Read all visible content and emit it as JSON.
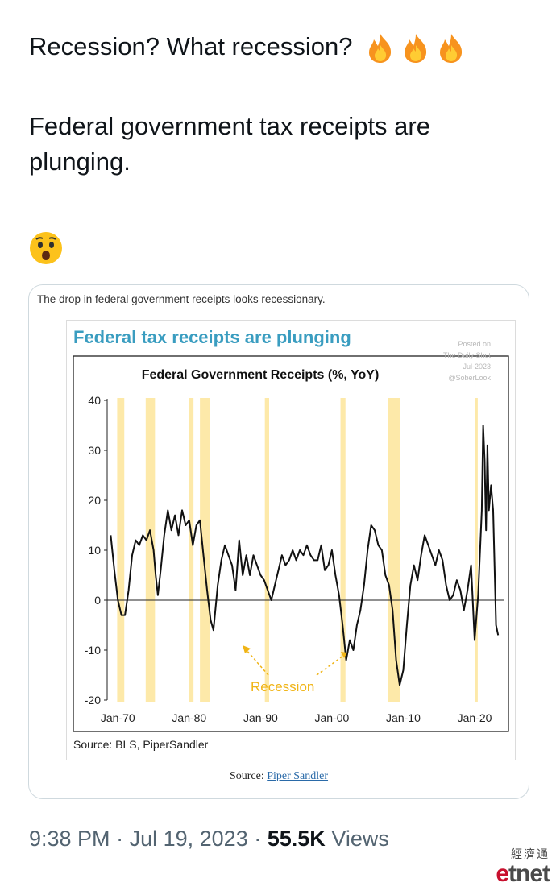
{
  "tweet": {
    "line1": "Recession? What recession?",
    "line2": "Federal government tax receipts are plunging.",
    "emojis": [
      "fire-icon",
      "fire-icon",
      "fire-icon",
      "astonished-face-icon"
    ]
  },
  "card": {
    "caption": "The drop in federal government receipts looks recessionary.",
    "headline": "Federal tax receipts are plunging",
    "watermark": [
      "Posted on",
      "The Daily Shot",
      "Jul-2023",
      "@SoberLook"
    ],
    "chart_source": "Source: BLS, PiperSandler",
    "source_prefix": "Source: ",
    "source_link": "Piper Sandler"
  },
  "chart_data": {
    "type": "line",
    "title": "Federal Government Receipts (%, YoY)",
    "xlabel": "",
    "ylabel": "",
    "ylim": [
      -20,
      40
    ],
    "y_ticks": [
      "40",
      "30",
      "20",
      "10",
      "0",
      "-10",
      "-20"
    ],
    "x_ticks": [
      "Jan-70",
      "Jan-80",
      "Jan-90",
      "Jan-00",
      "Jan-10",
      "Jan-20"
    ],
    "xlim": [
      1968.5,
      2023.5
    ],
    "annotation": "Recession",
    "recessions": [
      [
        1969.9,
        1970.9
      ],
      [
        1973.9,
        1975.2
      ],
      [
        1980.0,
        1980.6
      ],
      [
        1981.5,
        1982.9
      ],
      [
        1990.6,
        1991.2
      ],
      [
        2001.2,
        2001.9
      ],
      [
        2007.9,
        2009.5
      ],
      [
        2020.1,
        2020.4
      ]
    ],
    "series": [
      {
        "values": [
          [
            1969.0,
            13
          ],
          [
            1969.5,
            6
          ],
          [
            1970.0,
            0
          ],
          [
            1970.5,
            -3
          ],
          [
            1971.0,
            -3
          ],
          [
            1971.5,
            2
          ],
          [
            1972.0,
            9
          ],
          [
            1972.5,
            12
          ],
          [
            1973.0,
            11
          ],
          [
            1973.5,
            13
          ],
          [
            1974.0,
            12
          ],
          [
            1974.5,
            14
          ],
          [
            1975.0,
            10
          ],
          [
            1975.3,
            5
          ],
          [
            1975.6,
            1
          ],
          [
            1976.0,
            6
          ],
          [
            1976.5,
            13
          ],
          [
            1977.0,
            18
          ],
          [
            1977.5,
            14
          ],
          [
            1978.0,
            17
          ],
          [
            1978.5,
            13
          ],
          [
            1979.0,
            18
          ],
          [
            1979.5,
            15
          ],
          [
            1980.0,
            16
          ],
          [
            1980.5,
            11
          ],
          [
            1981.0,
            15
          ],
          [
            1981.5,
            16
          ],
          [
            1982.0,
            9
          ],
          [
            1982.5,
            2
          ],
          [
            1983.0,
            -4
          ],
          [
            1983.4,
            -6
          ],
          [
            1984.0,
            3
          ],
          [
            1984.5,
            8
          ],
          [
            1985.0,
            11
          ],
          [
            1985.5,
            9
          ],
          [
            1986.0,
            7
          ],
          [
            1986.5,
            2
          ],
          [
            1987.0,
            12
          ],
          [
            1987.5,
            5
          ],
          [
            1988.0,
            9
          ],
          [
            1988.5,
            5
          ],
          [
            1989.0,
            9
          ],
          [
            1989.5,
            7
          ],
          [
            1990.0,
            5
          ],
          [
            1990.5,
            4
          ],
          [
            1991.0,
            2
          ],
          [
            1991.5,
            0
          ],
          [
            1992.0,
            3
          ],
          [
            1992.5,
            6
          ],
          [
            1993.0,
            9
          ],
          [
            1993.5,
            7
          ],
          [
            1994.0,
            8
          ],
          [
            1994.5,
            10
          ],
          [
            1995.0,
            8
          ],
          [
            1995.5,
            10
          ],
          [
            1996.0,
            9
          ],
          [
            1996.5,
            11
          ],
          [
            1997.0,
            9
          ],
          [
            1997.5,
            8
          ],
          [
            1998.0,
            8
          ],
          [
            1998.5,
            11
          ],
          [
            1999.0,
            6
          ],
          [
            1999.5,
            7
          ],
          [
            2000.0,
            10
          ],
          [
            2000.5,
            5
          ],
          [
            2001.0,
            1
          ],
          [
            2001.5,
            -5
          ],
          [
            2002.0,
            -12
          ],
          [
            2002.5,
            -8
          ],
          [
            2003.0,
            -10
          ],
          [
            2003.5,
            -5
          ],
          [
            2004.0,
            -2
          ],
          [
            2004.5,
            3
          ],
          [
            2005.0,
            10
          ],
          [
            2005.5,
            15
          ],
          [
            2006.0,
            14
          ],
          [
            2006.5,
            11
          ],
          [
            2007.0,
            10
          ],
          [
            2007.5,
            5
          ],
          [
            2008.0,
            3
          ],
          [
            2008.5,
            -2
          ],
          [
            2009.0,
            -12
          ],
          [
            2009.5,
            -17
          ],
          [
            2010.0,
            -14
          ],
          [
            2010.5,
            -5
          ],
          [
            2011.0,
            3
          ],
          [
            2011.5,
            7
          ],
          [
            2012.0,
            4
          ],
          [
            2012.5,
            9
          ],
          [
            2013.0,
            13
          ],
          [
            2013.5,
            11
          ],
          [
            2014.0,
            9
          ],
          [
            2014.5,
            7
          ],
          [
            2015.0,
            10
          ],
          [
            2015.5,
            8
          ],
          [
            2016.0,
            3
          ],
          [
            2016.5,
            0
          ],
          [
            2017.0,
            1
          ],
          [
            2017.5,
            4
          ],
          [
            2018.0,
            2
          ],
          [
            2018.5,
            -2
          ],
          [
            2019.0,
            2
          ],
          [
            2019.5,
            7
          ],
          [
            2020.0,
            -8
          ],
          [
            2020.5,
            1
          ],
          [
            2021.0,
            18
          ],
          [
            2021.2,
            35
          ],
          [
            2021.4,
            28
          ],
          [
            2021.6,
            14
          ],
          [
            2021.8,
            31
          ],
          [
            2022.0,
            18
          ],
          [
            2022.3,
            23
          ],
          [
            2022.6,
            18
          ],
          [
            2023.0,
            -5
          ],
          [
            2023.3,
            -7
          ]
        ]
      }
    ]
  },
  "footer": {
    "time": "9:38 PM",
    "separator": "·",
    "date": "Jul 19, 2023",
    "views_count": "55.5K",
    "views_label": "Views"
  },
  "watermark_logo": {
    "chinese": "經濟通",
    "brand_e": "e",
    "brand_rest": "tnet"
  }
}
